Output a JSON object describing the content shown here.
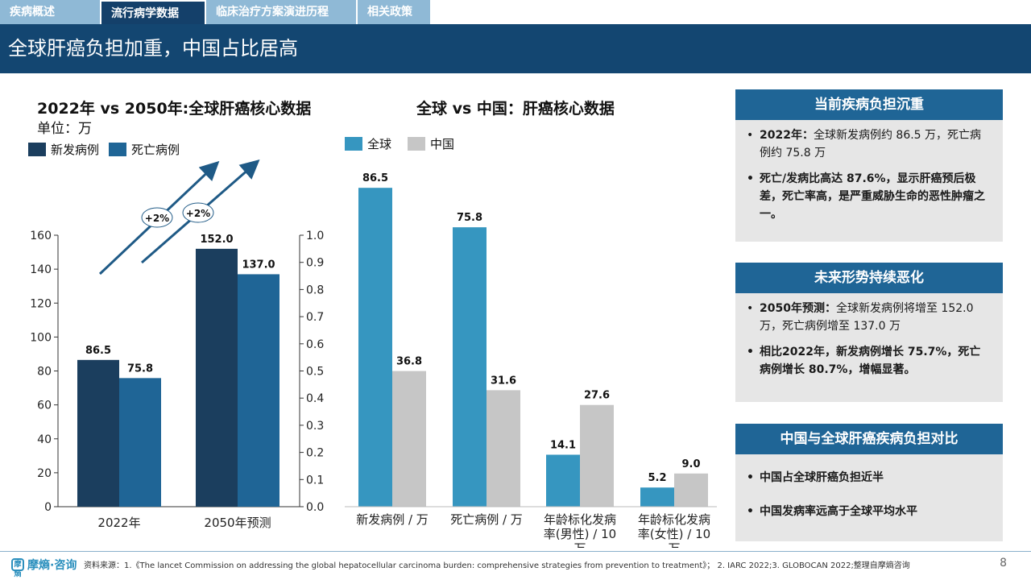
{
  "tabs": [
    "疾病概述",
    "流行病学数据",
    "临床治疗方案演进历程",
    "相关政策"
  ],
  "active_tab": 1,
  "page_title": "全球肝癌负担加重，中国占比居高",
  "left_chart": {
    "title": "2022年 vs 2050年:全球肝癌核心数据",
    "unit": "单位：万",
    "legend": [
      "新发病例",
      "死亡病例"
    ],
    "growth_labels": [
      "+2%",
      "+2%"
    ]
  },
  "middle_chart": {
    "title": "全球 vs 中国：肝癌核心数据",
    "legend": [
      "全球",
      "中国"
    ]
  },
  "chart_data": [
    {
      "type": "bar",
      "title": "2022年 vs 2050年:全球肝癌核心数据",
      "categories": [
        "2022年",
        "2050年预测"
      ],
      "series": [
        {
          "name": "新发病例",
          "values": [
            86.5,
            152.0
          ],
          "labels": [
            "86.5",
            "152.0"
          ],
          "color": "#1b3e5e"
        },
        {
          "name": "死亡病例",
          "values": [
            75.8,
            137.0
          ],
          "labels": [
            "75.8",
            "137.0"
          ],
          "color": "#1f6596"
        }
      ],
      "ylim": [
        0,
        160
      ],
      "yticks": [
        "0",
        "20",
        "40",
        "60",
        "80",
        "100",
        "120",
        "140",
        "160"
      ],
      "y2lim": [
        0,
        1.0
      ],
      "y2ticks": [
        "0.0",
        "0.1",
        "0.2",
        "0.3",
        "0.4",
        "0.5",
        "0.6",
        "0.7",
        "0.8",
        "0.9",
        "1.0"
      ],
      "ylabel": "单位：万",
      "legend_position": "top-left"
    },
    {
      "type": "bar",
      "title": "全球 vs 中国：肝癌核心数据",
      "categories": [
        "新发病例 / 万",
        "死亡病例 / 万",
        "年龄标化发病率(男性) / 10万",
        "年龄标化发病率(女性) / 10万"
      ],
      "category_lines": [
        [
          "新发病例 / 万"
        ],
        [
          "死亡病例 / 万"
        ],
        [
          "年龄标化发病",
          "率(男性) / 10",
          "万"
        ],
        [
          "年龄标化发病",
          "率(女性) / 10",
          "万"
        ]
      ],
      "series": [
        {
          "name": "全球",
          "values": [
            86.5,
            75.8,
            14.1,
            5.2
          ],
          "labels": [
            "86.5",
            "75.8",
            "14.1",
            "5.2"
          ],
          "color": "#3696c0"
        },
        {
          "name": "中国",
          "values": [
            36.8,
            31.6,
            27.6,
            9.0
          ],
          "labels": [
            "36.8",
            "31.6",
            "27.6",
            "9.0"
          ],
          "color": "#c6c6c6"
        }
      ],
      "ylim": [
        0,
        92
      ],
      "legend_position": "top-left"
    }
  ],
  "panels": [
    {
      "header": "当前疾病负担沉重",
      "bullets": [
        {
          "lead": "2022年：",
          "text": "全球新发病例约 86.5 万，死亡病例约 75.8 万"
        },
        {
          "lead": "",
          "text": "死亡/发病比高达 87.6%，显示肝癌预后极差，死亡率高，是严重威胁生命的恶性肿瘤之一。",
          "strong": true
        }
      ]
    },
    {
      "header": "未来形势持续恶化",
      "bullets": [
        {
          "lead": "2050年预测：",
          "text": "全球新发病例将增至 152.0 万，死亡病例增至 137.0 万"
        },
        {
          "lead": "",
          "text": "相比2022年，新发病例增长 75.7%，死亡病例增长 80.7%，增幅显著。",
          "strong": true
        }
      ]
    },
    {
      "header": "中国与全球肝癌疾病负担对比",
      "bullets": [
        {
          "lead": "",
          "text": "中国占全球肝癌负担近半",
          "strong": true
        },
        {
          "lead": "",
          "text": "中国发病率远高于全球平均水平",
          "strong": true
        }
      ]
    }
  ],
  "footer": {
    "brand": "摩熵·咨询",
    "logo_text": "摩熵",
    "source": "资料来源：1.《The lancet Commission on addressing the global hepatocellular carcinoma burden: comprehensive strategies from prevention to treatment》； 2. IARC 2022;3. GLOBOCAN 2022;整理自摩熵咨询",
    "page_number": "8"
  },
  "colors": {
    "title_bar": "#134671",
    "panel_header": "#1f6596",
    "tab_inactive": "#8fb9d6"
  }
}
